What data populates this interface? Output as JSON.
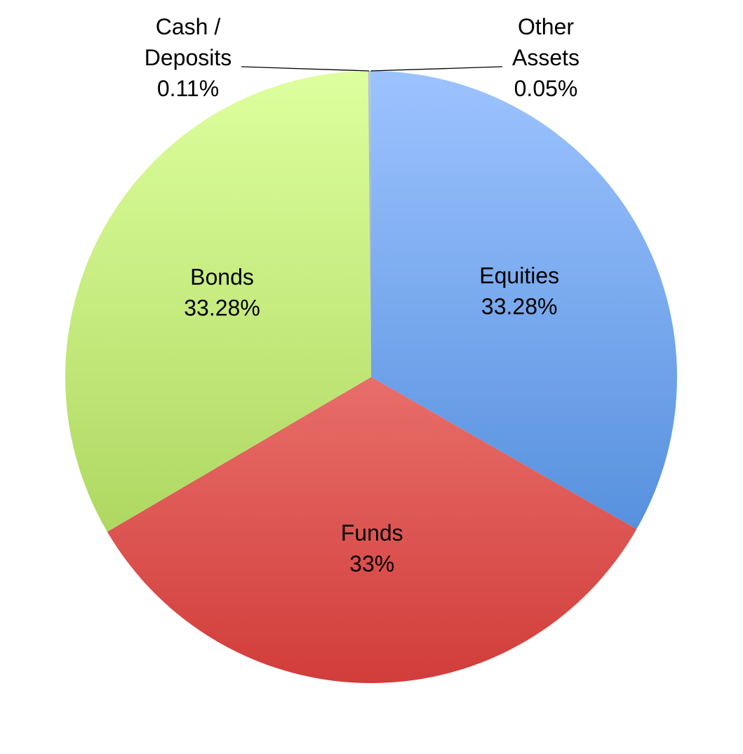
{
  "chart_data": {
    "type": "pie",
    "title": "",
    "start": "top",
    "direction": "clockwise",
    "slices": [
      {
        "name": "Equities",
        "pct_label": "33.28%",
        "value": 33.28,
        "colors": {
          "top": "#9DC3FF",
          "bottom": "#3F80D3"
        },
        "label_mode": "inside"
      },
      {
        "name": "Funds",
        "pct_label": "33%",
        "value": 33.28,
        "colors": {
          "top": "#FF9E9A",
          "bottom": "#D13D3A"
        },
        "label_mode": "inside"
      },
      {
        "name": "Bonds",
        "pct_label": "33.28%",
        "value": 33.28,
        "colors": {
          "top": "#DEFF9E",
          "bottom": "#9FCB4E"
        },
        "label_mode": "inside"
      },
      {
        "name": "Cash /\nDeposits",
        "pct_label": "0.11%",
        "value": 0.11,
        "colors": {
          "top": "#C4BDD6",
          "bottom": "#8A82A8"
        },
        "label_mode": "callout-left"
      },
      {
        "name": "Other\nAssets",
        "pct_label": "0.05%",
        "value": 0.05,
        "colors": {
          "top": "#8FD4E6",
          "bottom": "#3AA0BC"
        },
        "label_mode": "callout-right"
      }
    ]
  }
}
